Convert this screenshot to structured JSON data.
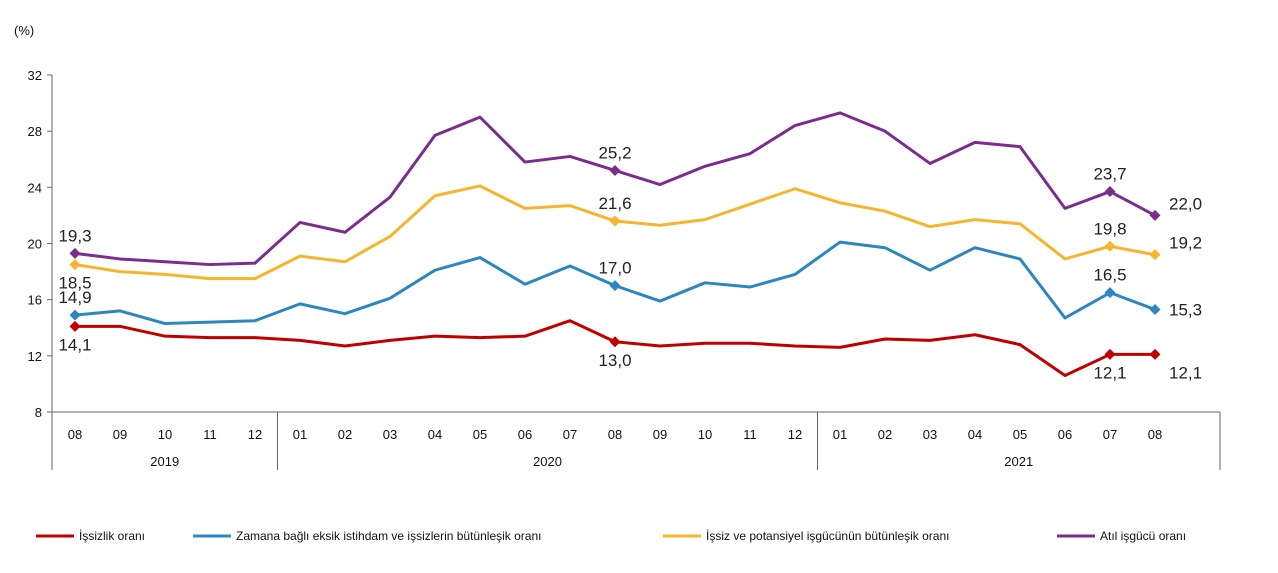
{
  "chart_data": {
    "type": "line",
    "y_unit_label": "(%)",
    "ylim": [
      8,
      32
    ],
    "yticks": [
      8,
      12,
      16,
      20,
      24,
      28,
      32
    ],
    "grid": false,
    "legend_position": "bottom",
    "categories": [
      "08",
      "09",
      "10",
      "11",
      "12",
      "01",
      "02",
      "03",
      "04",
      "05",
      "06",
      "07",
      "08",
      "09",
      "10",
      "11",
      "12",
      "01",
      "02",
      "03",
      "04",
      "05",
      "06",
      "07",
      "08"
    ],
    "years": [
      {
        "label": "2019",
        "start": 0,
        "end": 4
      },
      {
        "label": "2020",
        "start": 5,
        "end": 16
      },
      {
        "label": "2021",
        "start": 17,
        "end": 24
      }
    ],
    "series": [
      {
        "name": "İşsizlik oranı",
        "color": "#c00000",
        "values": [
          14.1,
          14.1,
          13.4,
          13.3,
          13.3,
          13.1,
          12.7,
          13.1,
          13.4,
          13.3,
          13.4,
          14.5,
          13.0,
          12.7,
          12.9,
          12.9,
          12.7,
          12.6,
          13.2,
          13.1,
          13.5,
          12.8,
          10.6,
          12.1,
          12.1
        ],
        "labels": [
          {
            "index": 0,
            "text": "14,1",
            "pos": "below"
          },
          {
            "index": 12,
            "text": "13,0",
            "pos": "below"
          },
          {
            "index": 23,
            "text": "12,1",
            "pos": "below"
          },
          {
            "index": 24,
            "text": "12,1",
            "pos": "right-below"
          }
        ]
      },
      {
        "name": "Zamana bağlı eksik istihdam ve işsizlerin bütünleşik oranı",
        "color": "#2e86c1",
        "values": [
          14.9,
          15.2,
          14.3,
          14.4,
          14.5,
          15.7,
          15.0,
          16.1,
          18.1,
          19.0,
          17.1,
          18.4,
          17.0,
          15.9,
          17.2,
          16.9,
          17.8,
          20.1,
          19.7,
          18.1,
          19.7,
          18.9,
          14.7,
          16.5,
          15.3
        ],
        "labels": [
          {
            "index": 0,
            "text": "14,9",
            "pos": "above"
          },
          {
            "index": 12,
            "text": "17,0",
            "pos": "above"
          },
          {
            "index": 23,
            "text": "16,5",
            "pos": "above"
          },
          {
            "index": 24,
            "text": "15,3",
            "pos": "right"
          }
        ]
      },
      {
        "name": "İşsiz ve potansiyel işgücünün bütünleşik oranı",
        "color": "#f5b52e",
        "values": [
          18.5,
          18.0,
          17.8,
          17.5,
          17.5,
          19.1,
          18.7,
          20.5,
          23.4,
          24.1,
          22.5,
          22.7,
          21.6,
          21.3,
          21.7,
          22.8,
          23.9,
          22.9,
          22.3,
          21.2,
          21.7,
          21.4,
          18.9,
          19.8,
          19.2
        ],
        "labels": [
          {
            "index": 0,
            "text": "18,5",
            "pos": "below"
          },
          {
            "index": 12,
            "text": "21,6",
            "pos": "above"
          },
          {
            "index": 23,
            "text": "19,8",
            "pos": "above"
          },
          {
            "index": 24,
            "text": "19,2",
            "pos": "right-above"
          }
        ]
      },
      {
        "name": "Atıl işgücü oranı",
        "color": "#7b2d8e",
        "values": [
          19.3,
          18.9,
          18.7,
          18.5,
          18.6,
          21.5,
          20.8,
          23.3,
          27.7,
          29.0,
          25.8,
          26.2,
          25.2,
          24.2,
          25.5,
          26.4,
          28.4,
          29.3,
          28.0,
          25.7,
          27.2,
          26.9,
          22.5,
          23.7,
          22.0
        ],
        "labels": [
          {
            "index": 0,
            "text": "19,3",
            "pos": "above"
          },
          {
            "index": 12,
            "text": "25,2",
            "pos": "above"
          },
          {
            "index": 23,
            "text": "23,7",
            "pos": "above"
          },
          {
            "index": 24,
            "text": "22,0",
            "pos": "right-above"
          }
        ]
      }
    ]
  }
}
